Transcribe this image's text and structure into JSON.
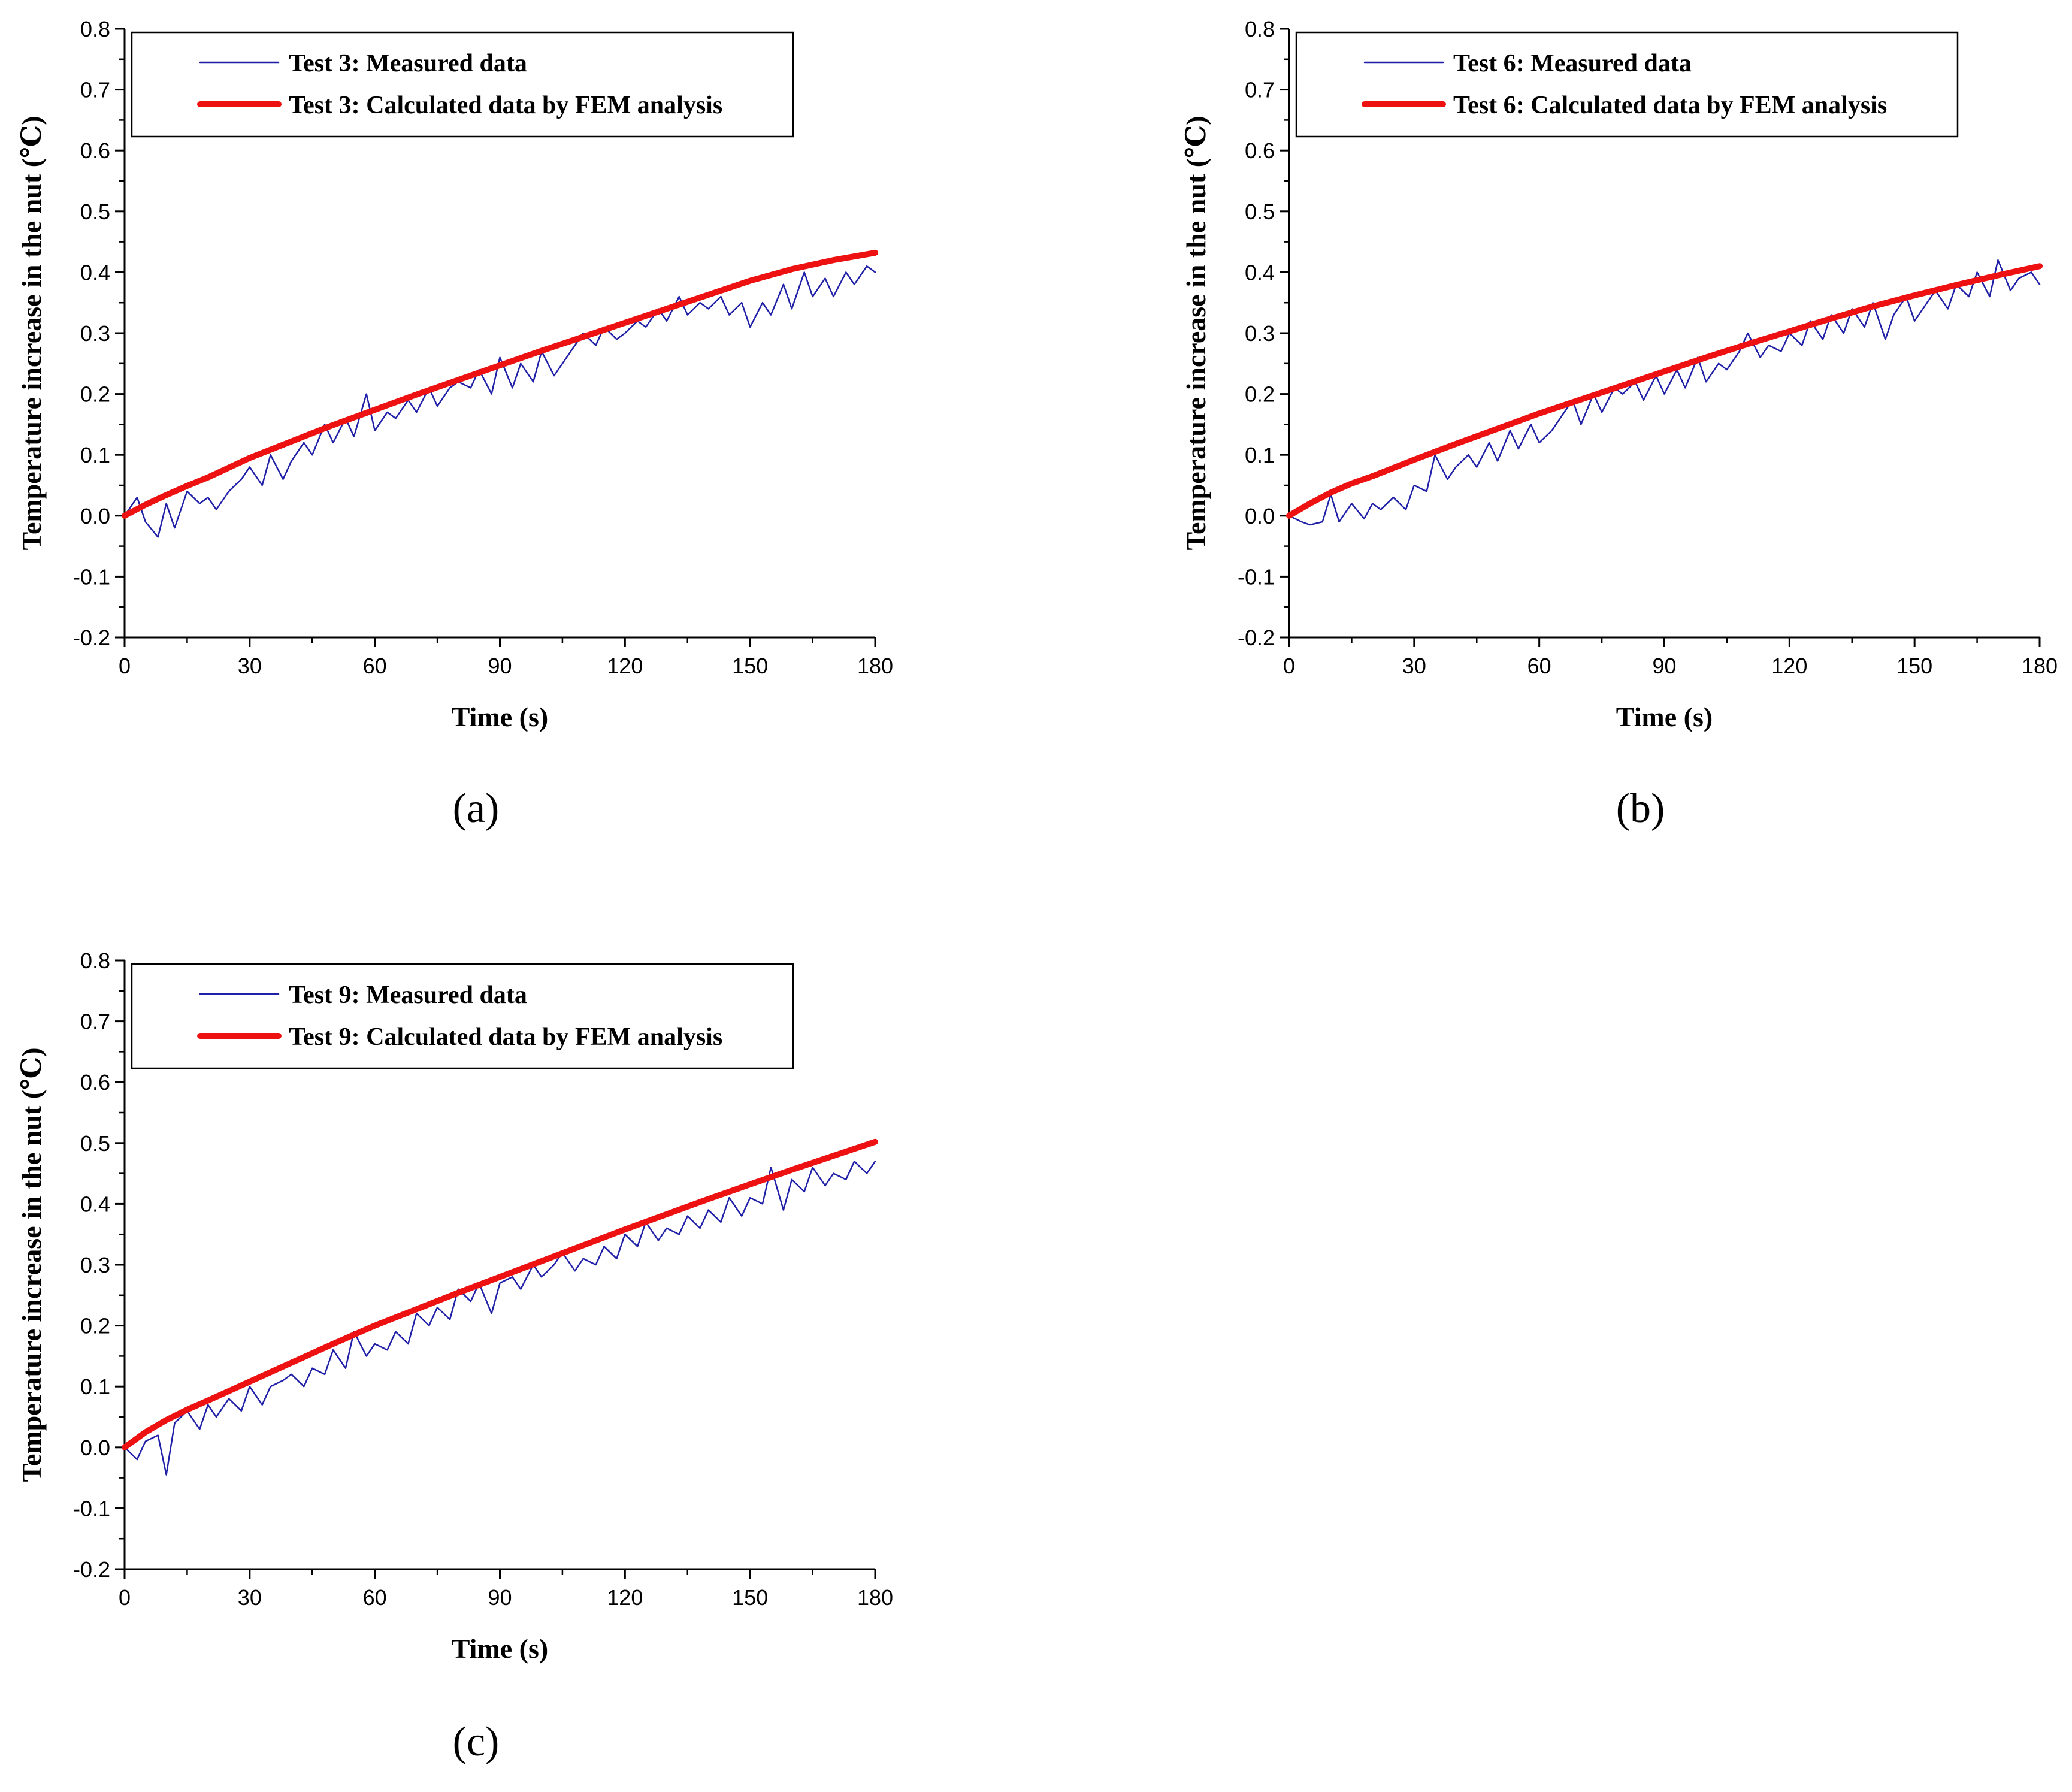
{
  "figure": {
    "panels": [
      "(a)",
      "(b)",
      "(c)"
    ]
  },
  "chart_data": [
    {
      "type": "line",
      "panel_label": "(a)",
      "xlabel": "Time (s)",
      "ylabel": "Temperature increase in the nut  (℃)",
      "xlim": [
        0,
        180
      ],
      "ylim": [
        -0.2,
        0.8
      ],
      "xticks": [
        0,
        30,
        60,
        90,
        120,
        150,
        180
      ],
      "xtick_labels": [
        "0",
        "30",
        "60",
        "90",
        "120",
        "150",
        "180"
      ],
      "yticks": [
        -0.2,
        -0.1,
        0.0,
        0.1,
        0.2,
        0.3,
        0.4,
        0.5,
        0.6,
        0.7,
        0.8
      ],
      "ytick_labels": [
        "-0.2",
        "-0.1",
        "0.0",
        "0.1",
        "0.2",
        "0.3",
        "0.4",
        "0.5",
        "0.6",
        "0.7",
        "0.8"
      ],
      "legend_position": "top-left",
      "series": [
        {
          "name": "Test 3: Measured data",
          "color": "#1f1fa8",
          "style": "thin",
          "x": [
            0,
            3,
            5,
            8,
            10,
            12,
            15,
            18,
            20,
            22,
            25,
            28,
            30,
            33,
            35,
            38,
            40,
            43,
            45,
            48,
            50,
            53,
            55,
            58,
            60,
            63,
            65,
            68,
            70,
            73,
            75,
            78,
            80,
            83,
            85,
            88,
            90,
            93,
            95,
            98,
            100,
            103,
            105,
            108,
            110,
            113,
            115,
            118,
            120,
            123,
            125,
            128,
            130,
            133,
            135,
            138,
            140,
            143,
            145,
            148,
            150,
            153,
            155,
            158,
            160,
            163,
            165,
            168,
            170,
            173,
            175,
            178,
            180
          ],
          "y": [
            0.0,
            0.03,
            -0.01,
            -0.035,
            0.02,
            -0.02,
            0.04,
            0.02,
            0.03,
            0.01,
            0.04,
            0.06,
            0.08,
            0.05,
            0.1,
            0.06,
            0.09,
            0.12,
            0.1,
            0.15,
            0.12,
            0.16,
            0.13,
            0.2,
            0.14,
            0.17,
            0.16,
            0.19,
            0.17,
            0.21,
            0.18,
            0.21,
            0.22,
            0.21,
            0.24,
            0.2,
            0.26,
            0.21,
            0.25,
            0.22,
            0.27,
            0.23,
            0.25,
            0.28,
            0.3,
            0.28,
            0.31,
            0.29,
            0.3,
            0.32,
            0.31,
            0.34,
            0.32,
            0.36,
            0.33,
            0.35,
            0.34,
            0.36,
            0.33,
            0.35,
            0.31,
            0.35,
            0.33,
            0.38,
            0.34,
            0.4,
            0.36,
            0.39,
            0.36,
            0.4,
            0.38,
            0.41,
            0.4
          ]
        },
        {
          "name": "Test 3: Calculated data by FEM analysis",
          "color": "#ee1111",
          "style": "thick",
          "x": [
            0,
            5,
            10,
            15,
            20,
            30,
            40,
            50,
            60,
            70,
            80,
            90,
            100,
            110,
            120,
            130,
            140,
            150,
            160,
            170,
            180
          ],
          "y": [
            0.0,
            0.018,
            0.034,
            0.049,
            0.063,
            0.095,
            0.122,
            0.149,
            0.174,
            0.199,
            0.223,
            0.247,
            0.271,
            0.294,
            0.317,
            0.34,
            0.363,
            0.386,
            0.405,
            0.42,
            0.432
          ]
        }
      ]
    },
    {
      "type": "line",
      "panel_label": "(b)",
      "xlabel": "Time (s)",
      "ylabel": "Temperature increase in the nut  (℃)",
      "xlim": [
        0,
        180
      ],
      "ylim": [
        -0.2,
        0.8
      ],
      "xticks": [
        0,
        30,
        60,
        90,
        120,
        150,
        180
      ],
      "xtick_labels": [
        "0",
        "30",
        "60",
        "90",
        "120",
        "150",
        "180"
      ],
      "yticks": [
        -0.2,
        -0.1,
        0.0,
        0.1,
        0.2,
        0.3,
        0.4,
        0.5,
        0.6,
        0.7,
        0.8
      ],
      "ytick_labels": [
        "-0.2",
        "-0.1",
        "0.0",
        "0.1",
        "0.2",
        "0.3",
        "0.4",
        "0.5",
        "0.6",
        "0.7",
        "0.8"
      ],
      "legend_position": "top-left",
      "series": [
        {
          "name": "Test 6: Measured data",
          "color": "#1f1fa8",
          "style": "thin",
          "x": [
            0,
            3,
            5,
            8,
            10,
            12,
            15,
            18,
            20,
            22,
            25,
            28,
            30,
            33,
            35,
            38,
            40,
            43,
            45,
            48,
            50,
            53,
            55,
            58,
            60,
            63,
            65,
            68,
            70,
            73,
            75,
            78,
            80,
            83,
            85,
            88,
            90,
            93,
            95,
            98,
            100,
            103,
            105,
            108,
            110,
            113,
            115,
            118,
            120,
            123,
            125,
            128,
            130,
            133,
            135,
            138,
            140,
            143,
            145,
            148,
            150,
            153,
            155,
            158,
            160,
            163,
            165,
            168,
            170,
            173,
            175,
            178,
            180
          ],
          "y": [
            0.0,
            -0.01,
            -0.015,
            -0.01,
            0.035,
            -0.01,
            0.02,
            -0.005,
            0.02,
            0.01,
            0.03,
            0.01,
            0.05,
            0.04,
            0.1,
            0.06,
            0.08,
            0.1,
            0.08,
            0.12,
            0.09,
            0.14,
            0.11,
            0.15,
            0.12,
            0.14,
            0.16,
            0.19,
            0.15,
            0.2,
            0.17,
            0.21,
            0.2,
            0.22,
            0.19,
            0.23,
            0.2,
            0.24,
            0.21,
            0.26,
            0.22,
            0.25,
            0.24,
            0.27,
            0.3,
            0.26,
            0.28,
            0.27,
            0.3,
            0.28,
            0.32,
            0.29,
            0.33,
            0.3,
            0.34,
            0.31,
            0.35,
            0.29,
            0.33,
            0.36,
            0.32,
            0.35,
            0.37,
            0.34,
            0.38,
            0.36,
            0.4,
            0.36,
            0.42,
            0.37,
            0.39,
            0.4,
            0.38
          ]
        },
        {
          "name": "Test 6: Calculated data by FEM analysis",
          "color": "#ee1111",
          "style": "thick",
          "x": [
            0,
            5,
            10,
            15,
            20,
            30,
            40,
            50,
            60,
            70,
            80,
            90,
            100,
            110,
            120,
            130,
            140,
            150,
            160,
            170,
            180
          ],
          "y": [
            0.0,
            0.02,
            0.038,
            0.053,
            0.065,
            0.092,
            0.118,
            0.143,
            0.168,
            0.191,
            0.214,
            0.237,
            0.26,
            0.282,
            0.303,
            0.324,
            0.344,
            0.362,
            0.379,
            0.395,
            0.41
          ]
        }
      ]
    },
    {
      "type": "line",
      "panel_label": "(c)",
      "xlabel": "Time (s)",
      "ylabel": "Temperature increase in the nut  (℃)",
      "xlim": [
        0,
        180
      ],
      "ylim": [
        -0.2,
        0.8
      ],
      "xticks": [
        0,
        30,
        60,
        90,
        120,
        150,
        180
      ],
      "xtick_labels": [
        "0",
        "30",
        "60",
        "90",
        "120",
        "150",
        "180"
      ],
      "yticks": [
        -0.2,
        -0.1,
        0.0,
        0.1,
        0.2,
        0.3,
        0.4,
        0.5,
        0.6,
        0.7,
        0.8
      ],
      "ytick_labels": [
        "-0.2",
        "-0.1",
        "0.0",
        "0.1",
        "0.2",
        "0.3",
        "0.4",
        "0.5",
        "0.6",
        "0.7",
        "0.8"
      ],
      "legend_position": "top-left",
      "series": [
        {
          "name": "Test 9: Measured data",
          "color": "#1f1fa8",
          "style": "thin",
          "x": [
            0,
            3,
            5,
            8,
            10,
            12,
            15,
            18,
            20,
            22,
            25,
            28,
            30,
            33,
            35,
            38,
            40,
            43,
            45,
            48,
            50,
            53,
            55,
            58,
            60,
            63,
            65,
            68,
            70,
            73,
            75,
            78,
            80,
            83,
            85,
            88,
            90,
            93,
            95,
            98,
            100,
            103,
            105,
            108,
            110,
            113,
            115,
            118,
            120,
            123,
            125,
            128,
            130,
            133,
            135,
            138,
            140,
            143,
            145,
            148,
            150,
            153,
            155,
            158,
            160,
            163,
            165,
            168,
            170,
            173,
            175,
            178,
            180
          ],
          "y": [
            0.0,
            -0.02,
            0.01,
            0.02,
            -0.045,
            0.04,
            0.06,
            0.03,
            0.07,
            0.05,
            0.08,
            0.06,
            0.1,
            0.07,
            0.1,
            0.11,
            0.12,
            0.1,
            0.13,
            0.12,
            0.16,
            0.13,
            0.19,
            0.15,
            0.17,
            0.16,
            0.19,
            0.17,
            0.22,
            0.2,
            0.23,
            0.21,
            0.26,
            0.24,
            0.27,
            0.22,
            0.27,
            0.28,
            0.26,
            0.3,
            0.28,
            0.3,
            0.32,
            0.29,
            0.31,
            0.3,
            0.33,
            0.31,
            0.35,
            0.33,
            0.37,
            0.34,
            0.36,
            0.35,
            0.38,
            0.36,
            0.39,
            0.37,
            0.41,
            0.38,
            0.41,
            0.4,
            0.46,
            0.39,
            0.44,
            0.42,
            0.46,
            0.43,
            0.45,
            0.44,
            0.47,
            0.45,
            0.47
          ]
        },
        {
          "name": "Test 9: Calculated data by FEM analysis",
          "color": "#ee1111",
          "style": "thick",
          "x": [
            0,
            5,
            10,
            15,
            20,
            30,
            40,
            50,
            60,
            70,
            80,
            90,
            100,
            110,
            120,
            130,
            140,
            150,
            160,
            170,
            180
          ],
          "y": [
            0.0,
            0.025,
            0.045,
            0.062,
            0.077,
            0.108,
            0.139,
            0.17,
            0.2,
            0.227,
            0.254,
            0.28,
            0.306,
            0.332,
            0.358,
            0.383,
            0.408,
            0.432,
            0.456,
            0.479,
            0.502
          ]
        }
      ]
    }
  ]
}
